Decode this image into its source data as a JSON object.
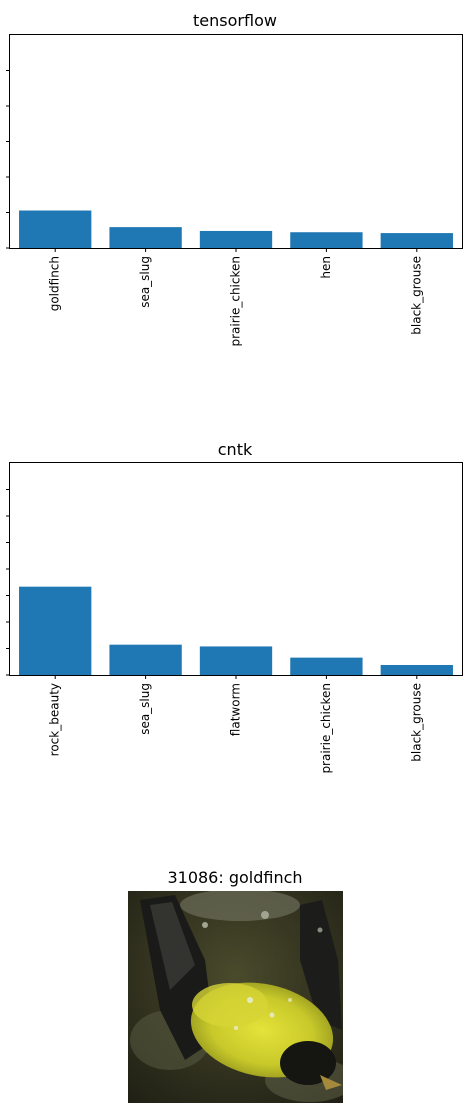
{
  "chart_data": [
    {
      "type": "bar",
      "title": "tensorflow",
      "categories": [
        "goldfinch",
        "sea_slug",
        "prairie_chicken",
        "hen",
        "black_grouse"
      ],
      "values": [
        0.088,
        0.049,
        0.04,
        0.037,
        0.035
      ],
      "ylim": [
        0,
        0.5
      ],
      "ytick_count": 6,
      "ytick_labels_visible": false,
      "grid": false,
      "legend": "none",
      "bar_color": "#1f77b4"
    },
    {
      "type": "bar",
      "title": "cntk",
      "categories": [
        "rock_beauty",
        "sea_slug",
        "flatworm",
        "prairie_chicken",
        "black_grouse"
      ],
      "values": [
        0.3,
        0.103,
        0.097,
        0.059,
        0.034
      ],
      "ylim": [
        0,
        0.72
      ],
      "ytick_count": 8,
      "ytick_labels_visible": false,
      "grid": false,
      "legend": "none",
      "bar_color": "#1f77b4"
    }
  ],
  "image_panel": {
    "title": "31086: goldfinch",
    "subject": "goldfinch bathing in water"
  }
}
